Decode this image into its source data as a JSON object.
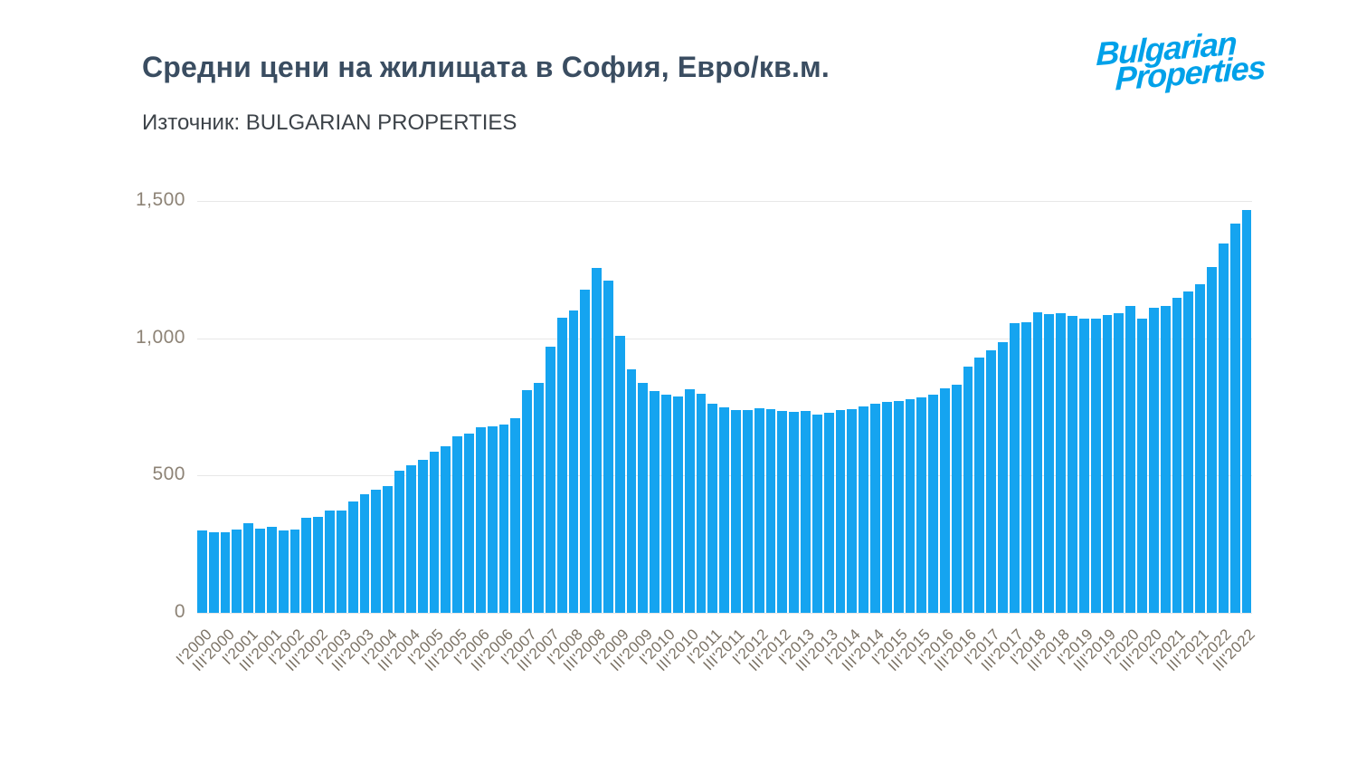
{
  "header": {
    "title": "Средни цени на жилищата в София, Евро/кв.м.",
    "source_label": "Източник: BULGARIAN PROPERTIES",
    "logo_line1": "Bulgarian",
    "logo_line2": "Properties"
  },
  "colors": {
    "bar": "#15a4f0",
    "logo_blue": "#00a1e9",
    "title_text": "#3a4d61",
    "subtitle_text": "#3d4349",
    "axis_label": "#8d8376",
    "x_axis_label": "#7c7366",
    "gridline": "#e7e7e7"
  },
  "chart_data": {
    "type": "bar",
    "title": "Средни цени на жилищата в София, Евро/кв.м.",
    "source": "Източник: BULGARIAN PROPERTIES",
    "unit": "Евро/кв.м.",
    "ylim": [
      0,
      1500
    ],
    "y_tick_values": [
      0,
      500,
      1000,
      1500
    ],
    "y_tick_labels": [
      "0",
      "500",
      "1,000",
      "1,500"
    ],
    "grid": true,
    "legend": false,
    "x_tick_every_n_bars": 2,
    "x_tick_labels": [
      "I'2000",
      "III'2000",
      "I'2001",
      "III'2001",
      "I'2002",
      "III'2002",
      "I'2003",
      "III'2003",
      "I'2004",
      "III'2004",
      "I'2005",
      "III'2005",
      "I'2006",
      "III'2006",
      "I'2007",
      "III'2007",
      "I'2008",
      "III'2008",
      "I'2009",
      "III'2009",
      "I'2010",
      "III'2010",
      "I'2011",
      "III'2011",
      "I'2012",
      "III'2012",
      "I'2013",
      "III'2013",
      "I'2014",
      "III'2014",
      "I'2015",
      "III'2015",
      "I'2016",
      "III'2016",
      "I'2017",
      "III'2017",
      "I'2018",
      "III'2018",
      "I'2019",
      "III'2019",
      "I'2020",
      "III'2020",
      "I'2021",
      "III'2021",
      "I'2022",
      "III'2022"
    ],
    "values": [
      299,
      295,
      292,
      303,
      327,
      305,
      314,
      299,
      303,
      347,
      350,
      374,
      371,
      405,
      432,
      449,
      462,
      517,
      539,
      558,
      588,
      607,
      643,
      654,
      676,
      678,
      687,
      709,
      810,
      837,
      970,
      1076,
      1100,
      1177,
      1257,
      1210,
      1010,
      887,
      837,
      807,
      796,
      789,
      813,
      798,
      763,
      747,
      739,
      738,
      745,
      742,
      736,
      733,
      736,
      722,
      728,
      737,
      741,
      752,
      760,
      768,
      772,
      777,
      784,
      793,
      816,
      831,
      898,
      930,
      955,
      985,
      1056,
      1058,
      1094,
      1088,
      1090,
      1080,
      1072,
      1070,
      1085,
      1092,
      1118,
      1072,
      1112,
      1116,
      1147,
      1171,
      1197,
      1260,
      1345,
      1418,
      1467
    ]
  }
}
